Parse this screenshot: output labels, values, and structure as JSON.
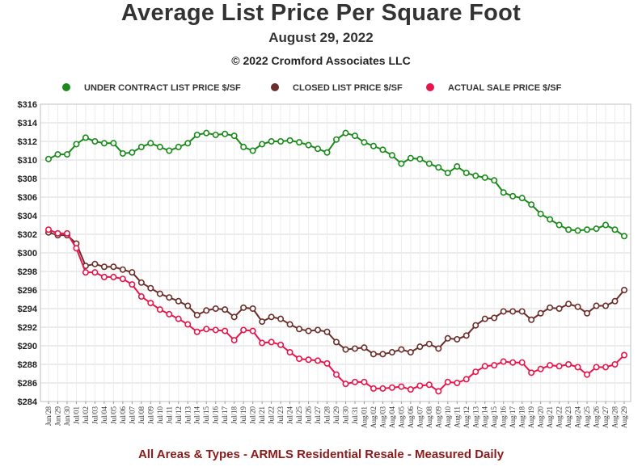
{
  "title": "Average List Price Per Square Foot",
  "subtitle": "August 29, 2022",
  "copyright": "© 2022 Cromford Associates LLC",
  "footer": "All Areas & Types - ARMLS Residential Resale - Measured Daily",
  "chart_data": {
    "type": "line",
    "title": "Average List Price Per Square Foot",
    "ylim": [
      284,
      316
    ],
    "yticks": [
      "$284",
      "$286",
      "$288",
      "$290",
      "$292",
      "$294",
      "$296",
      "$298",
      "$300",
      "$302",
      "$304",
      "$306",
      "$308",
      "$310",
      "$312",
      "$314",
      "$316"
    ],
    "ytick_values": [
      284,
      286,
      288,
      290,
      292,
      294,
      296,
      298,
      300,
      302,
      304,
      306,
      308,
      310,
      312,
      314,
      316
    ],
    "grid": true,
    "legend": "top",
    "x": [
      "Jun/28",
      "Jun/29",
      "Jun/30",
      "Jul/01",
      "Jul/02",
      "Jul/03",
      "Jul/04",
      "Jul/05",
      "Jul/06",
      "Jul/07",
      "Jul/08",
      "Jul/09",
      "Jul/10",
      "Jul/11",
      "Jul/12",
      "Jul/13",
      "Jul/14",
      "Jul/15",
      "Jul/16",
      "Jul/17",
      "Jul/18",
      "Jul/19",
      "Jul/20",
      "Jul/21",
      "Jul/22",
      "Jul/23",
      "Jul/24",
      "Jul/25",
      "Jul/26",
      "Jul/27",
      "Jul/28",
      "Jul/29",
      "Jul/30",
      "Jul/31",
      "Aug/01",
      "Aug/02",
      "Aug/03",
      "Aug/04",
      "Aug/05",
      "Aug/06",
      "Aug/07",
      "Aug/08",
      "Aug/09",
      "Aug/10",
      "Aug/11",
      "Aug/12",
      "Aug/13",
      "Aug/14",
      "Aug/15",
      "Aug/16",
      "Aug/17",
      "Aug/18",
      "Aug/19",
      "Aug/20",
      "Aug/21",
      "Aug/22",
      "Aug/23",
      "Aug/24",
      "Aug/25",
      "Aug/26",
      "Aug/27",
      "Aug/28",
      "Aug/29"
    ],
    "series": [
      {
        "name": "UNDER CONTRACT LIST PRICE $/SF",
        "color": "#1a8a1a",
        "values": [
          310.1,
          310.6,
          310.6,
          311.7,
          312.4,
          312.0,
          311.8,
          311.8,
          310.7,
          310.8,
          311.4,
          311.8,
          311.4,
          311.0,
          311.4,
          311.8,
          312.7,
          312.9,
          312.7,
          312.8,
          312.6,
          311.4,
          311.0,
          311.7,
          312.0,
          312.0,
          312.1,
          311.9,
          311.6,
          311.2,
          310.8,
          312.2,
          312.9,
          312.6,
          311.9,
          311.5,
          311.1,
          310.5,
          309.6,
          310.2,
          310.1,
          309.6,
          309.2,
          308.6,
          309.3,
          308.6,
          308.3,
          308.1,
          307.8,
          306.5,
          306.1,
          305.9,
          305.2,
          304.2,
          303.6,
          303.0,
          302.5,
          302.4,
          302.5,
          302.6,
          303.0,
          302.5,
          301.8
        ]
      },
      {
        "name": "CLOSED LIST PRICE $/SF",
        "color": "#6b2e2a",
        "values": [
          302.2,
          301.9,
          301.9,
          301.0,
          298.6,
          298.8,
          298.5,
          298.5,
          298.2,
          297.9,
          296.8,
          296.2,
          295.6,
          295.2,
          294.8,
          294.3,
          293.3,
          293.8,
          294.0,
          293.9,
          293.1,
          294.1,
          294.0,
          292.6,
          293.1,
          292.9,
          292.3,
          291.8,
          291.6,
          291.7,
          291.5,
          290.4,
          289.6,
          289.7,
          289.8,
          289.1,
          289.1,
          289.3,
          289.6,
          289.3,
          289.9,
          290.2,
          289.7,
          290.8,
          290.7,
          291.1,
          292.2,
          292.9,
          293.0,
          293.7,
          293.7,
          293.7,
          292.8,
          293.5,
          294.1,
          294.0,
          294.5,
          294.2,
          293.5,
          294.3,
          294.3,
          294.8,
          296.0
        ]
      },
      {
        "name": "ACTUAL SALE PRICE $/SF",
        "color": "#e8154a",
        "values": [
          302.5,
          302.1,
          302.1,
          300.5,
          297.9,
          297.9,
          297.4,
          297.4,
          297.2,
          296.6,
          295.3,
          294.6,
          293.9,
          293.4,
          292.9,
          292.3,
          291.5,
          291.8,
          291.7,
          291.6,
          290.6,
          291.7,
          291.6,
          290.3,
          290.4,
          290.1,
          289.3,
          288.6,
          288.5,
          288.4,
          288.1,
          286.9,
          285.9,
          286.1,
          286.1,
          285.4,
          285.4,
          285.5,
          285.6,
          285.3,
          285.7,
          285.8,
          285.1,
          286.1,
          286.0,
          286.4,
          287.2,
          287.8,
          287.9,
          288.3,
          288.2,
          288.2,
          287.1,
          287.5,
          287.9,
          287.8,
          288.0,
          287.7,
          286.9,
          287.7,
          287.7,
          288.0,
          289.0
        ]
      }
    ]
  }
}
